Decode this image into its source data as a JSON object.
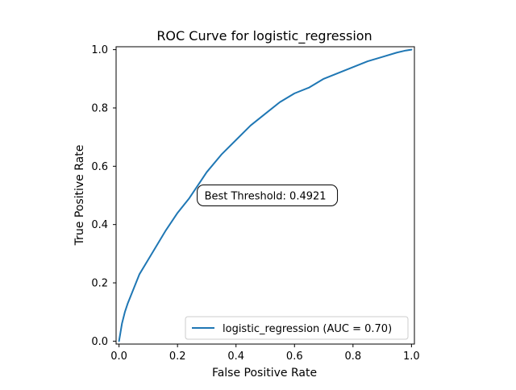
{
  "chart_data": {
    "type": "line",
    "title": "ROC Curve for logistic_regression",
    "xlabel": "False Positive Rate",
    "ylabel": "True Positive Rate",
    "xlim": [
      -0.01,
      1.01
    ],
    "ylim": [
      -0.01,
      1.01
    ],
    "xticks": [
      "0.0",
      "0.2",
      "0.4",
      "0.6",
      "0.8",
      "1.0"
    ],
    "yticks": [
      "0.0",
      "0.2",
      "0.4",
      "0.6",
      "0.8",
      "1.0"
    ],
    "grid": false,
    "legend_position": "lower right",
    "series": [
      {
        "name": "logistic_regression (AUC = 0.70)",
        "color": "#1f77b4",
        "x": [
          0.0,
          0.005,
          0.01,
          0.02,
          0.03,
          0.05,
          0.07,
          0.1,
          0.13,
          0.16,
          0.2,
          0.24,
          0.28,
          0.3,
          0.35,
          0.4,
          0.45,
          0.5,
          0.55,
          0.6,
          0.65,
          0.7,
          0.75,
          0.8,
          0.85,
          0.9,
          0.95,
          0.98,
          1.0
        ],
        "y": [
          0.0,
          0.03,
          0.06,
          0.1,
          0.13,
          0.18,
          0.23,
          0.28,
          0.33,
          0.38,
          0.44,
          0.49,
          0.55,
          0.58,
          0.64,
          0.69,
          0.74,
          0.78,
          0.82,
          0.85,
          0.87,
          0.9,
          0.92,
          0.94,
          0.96,
          0.975,
          0.99,
          0.997,
          1.0
        ]
      }
    ],
    "annotations": [
      {
        "text": "Best Threshold: 0.4921",
        "x": 0.27,
        "y": 0.5
      }
    ]
  }
}
